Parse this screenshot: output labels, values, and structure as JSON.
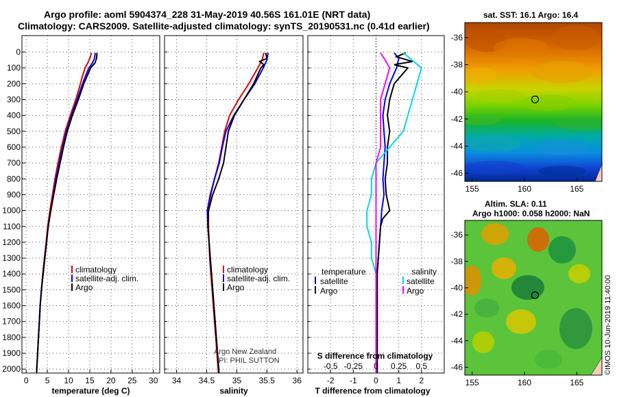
{
  "header": {
    "title_line1": "Argo profile: aoml 5904374_228 31-May-2019 40.56S 161.01E (NRT data)",
    "title_line2": "Climatology: CARS2009. Satellite-adjusted climatology: synTS_20190531.nc (0.41d earlier)"
  },
  "colors": {
    "climatology": "#e00000",
    "satellite": "#0000ee",
    "argo": "#000000",
    "sat_s": "#00d8e8",
    "argo_s": "#ff00ff"
  },
  "chart_data": [
    {
      "type": "line",
      "xlabel": "temperature (deg C)",
      "ylabel": "",
      "xlim": [
        -1,
        31.5
      ],
      "ylim": [
        2060,
        0
      ],
      "xticks": [
        "0",
        "5",
        "10",
        "15",
        "20",
        "25",
        "30"
      ],
      "yticks": [
        "0",
        "100",
        "200",
        "300",
        "400",
        "500",
        "600",
        "700",
        "800",
        "900",
        "1000",
        "1100",
        "1200",
        "1300",
        "1400",
        "1500",
        "1600",
        "1700",
        "1800",
        "1900",
        "2000"
      ],
      "legend": [
        "climatology",
        "satellite-adj. clim.",
        "Argo"
      ],
      "series": [
        {
          "name": "climatology",
          "color": "#e00000",
          "depth": [
            5,
            40,
            70,
            100,
            150,
            200,
            300,
            400,
            500,
            600,
            700,
            800,
            900,
            1000,
            1100,
            1200,
            1300,
            1400,
            1500,
            1600,
            1700,
            1800,
            1900,
            2000,
            2060
          ],
          "values": [
            15.4,
            15.0,
            14.5,
            13.9,
            13.3,
            12.8,
            11.7,
            10.4,
            9.2,
            8.3,
            7.5,
            6.8,
            6.2,
            5.6,
            5.1,
            4.7,
            4.3,
            3.9,
            3.6,
            3.3,
            3.1,
            2.9,
            2.7,
            2.5,
            2.45
          ]
        },
        {
          "name": "satellite-adj. clim.",
          "color": "#0000ee",
          "depth": [
            5,
            40,
            70,
            100,
            150,
            200,
            300,
            400,
            500,
            600,
            700,
            800,
            900,
            1000,
            1100,
            1200,
            1300,
            1400,
            1500,
            1600,
            1700,
            1800,
            1900,
            2000,
            2060
          ],
          "values": [
            16.3,
            16.1,
            15.6,
            14.8,
            14.0,
            13.3,
            12.0,
            10.7,
            9.5,
            8.6,
            7.8,
            7.0,
            6.4,
            5.8,
            5.2,
            4.8,
            4.4,
            4.0,
            3.6,
            3.3,
            3.1,
            2.9,
            2.7,
            2.5,
            2.45
          ]
        },
        {
          "name": "Argo",
          "color": "#000000",
          "depth": [
            5,
            40,
            70,
            100,
            150,
            200,
            300,
            400,
            500,
            600,
            700,
            800,
            900,
            1000,
            1100,
            1200,
            1300,
            1400,
            1500,
            1600,
            1700,
            1800,
            1900,
            2000,
            2060
          ],
          "values": [
            16.7,
            16.6,
            16.2,
            15.2,
            14.4,
            13.6,
            12.3,
            10.9,
            9.7,
            8.8,
            8.0,
            7.2,
            6.5,
            5.8,
            5.2,
            4.8,
            4.4,
            4.0,
            3.6,
            3.3,
            3.1,
            2.9,
            2.7,
            2.5,
            2.45
          ]
        }
      ]
    },
    {
      "type": "line",
      "xlabel": "salinity",
      "ylabel": "",
      "xlim": [
        33.8,
        36.1
      ],
      "ylim": [
        2060,
        0
      ],
      "xticks": [
        "34",
        "34.5",
        "35",
        "35.5",
        "36"
      ],
      "legend": [
        "climatology",
        "satellite-adj. clim.",
        "Argo"
      ],
      "series": [
        {
          "name": "climatology",
          "color": "#e00000",
          "depth": [
            5,
            50,
            100,
            200,
            300,
            400,
            500,
            600,
            700,
            800,
            900,
            1000,
            1100,
            1200,
            1300,
            1400,
            1500,
            1600,
            1700,
            1800,
            1900,
            2000,
            2060
          ],
          "values": [
            35.45,
            35.42,
            35.35,
            35.2,
            35.03,
            34.88,
            34.8,
            34.75,
            34.7,
            34.63,
            34.57,
            34.53,
            34.53,
            34.54,
            34.55,
            34.57,
            34.59,
            34.61,
            34.63,
            34.65,
            34.67,
            34.69,
            34.7
          ]
        },
        {
          "name": "satellite-adj. clim.",
          "color": "#0000ee",
          "depth": [
            5,
            50,
            100,
            200,
            300,
            400,
            500,
            600,
            700,
            800,
            900,
            1000,
            1100,
            1200,
            1300,
            1400,
            1500,
            1600,
            1700,
            1800,
            1900,
            2000,
            2060
          ],
          "values": [
            35.52,
            35.5,
            35.44,
            35.3,
            35.12,
            34.95,
            34.82,
            34.76,
            34.71,
            34.63,
            34.56,
            34.51,
            34.52,
            34.54,
            34.56,
            34.58,
            34.6,
            34.62,
            34.64,
            34.66,
            34.68,
            34.7,
            34.71
          ]
        },
        {
          "name": "Argo",
          "color": "#000000",
          "depth": [
            5,
            40,
            60,
            80,
            100,
            200,
            300,
            400,
            500,
            600,
            700,
            800,
            900,
            1000,
            1100,
            1200,
            1300,
            1400,
            1500,
            1600,
            1700,
            1800,
            1900,
            2000,
            2060
          ],
          "values": [
            35.48,
            35.5,
            35.38,
            35.45,
            35.4,
            35.28,
            35.12,
            34.96,
            34.86,
            34.82,
            34.78,
            34.7,
            34.6,
            34.53,
            34.52,
            34.54,
            34.56,
            34.58,
            34.6,
            34.62,
            34.64,
            34.66,
            34.68,
            34.7,
            34.71
          ]
        }
      ]
    },
    {
      "type": "line",
      "xlabel": "T difference from climatology",
      "ylabel": "",
      "xlim": [
        -3,
        3
      ],
      "ylim": [
        2060,
        0
      ],
      "xticks": [
        "-2",
        "-1",
        "0",
        "1",
        "2"
      ],
      "secondary_axis": {
        "label": "S difference from climatology",
        "ticks": [
          "-0.5",
          "-0.25",
          "0",
          "0.25",
          "0.5"
        ]
      },
      "legend_temperature": {
        "title": "temperature",
        "items": [
          "satellite",
          "Argo"
        ]
      },
      "legend_salinity": {
        "title": "salinity",
        "items": [
          "satellite",
          "Argo"
        ]
      },
      "series": [
        {
          "name": "temperature satellite",
          "color": "#0000ee",
          "depth": [
            5,
            40,
            100,
            200,
            300,
            400,
            500,
            600,
            700,
            800,
            900,
            1000,
            1100,
            1200,
            1300,
            1400,
            1500,
            1600,
            1800,
            2000,
            2060
          ],
          "values": [
            0.8,
            1.0,
            0.9,
            0.6,
            0.4,
            0.3,
            0.35,
            0.4,
            0.35,
            0.3,
            0.35,
            0.25,
            0.2,
            0.15,
            0.1,
            0.05,
            0.05,
            0.05,
            0.05,
            0.05,
            0.05
          ]
        },
        {
          "name": "temperature Argo",
          "color": "#000000",
          "depth": [
            5,
            30,
            60,
            80,
            100,
            200,
            300,
            400,
            500,
            600,
            700,
            800,
            900,
            1000,
            1050,
            1100,
            1200,
            1300,
            1400,
            1500,
            1600,
            1800,
            2000,
            2060
          ],
          "values": [
            1.3,
            0.9,
            1.6,
            0.8,
            1.4,
            0.8,
            0.6,
            0.5,
            0.6,
            0.5,
            0.5,
            0.4,
            0.45,
            0.6,
            0.3,
            0.2,
            0.15,
            0.1,
            0.05,
            0.05,
            0.05,
            0.05,
            0.05,
            0.05
          ]
        },
        {
          "name": "salinity satellite",
          "color": "#00d8e8",
          "depth": [
            5,
            100,
            200,
            300,
            400,
            500,
            600,
            700,
            800,
            900,
            1000,
            1100,
            1200,
            1300,
            1400,
            1500,
            1600,
            1800,
            2000,
            2060
          ],
          "values": [
            0.3,
            0.5,
            0.45,
            0.4,
            0.35,
            0.3,
            0.15,
            0.0,
            -0.05,
            -0.05,
            -0.1,
            -0.1,
            -0.05,
            -0.05,
            0.0,
            0.0,
            0.0,
            0.0,
            0.0,
            0.0
          ]
        },
        {
          "name": "salinity Argo",
          "color": "#ff00ff",
          "depth": [
            5,
            50,
            100,
            200,
            300,
            400,
            500,
            600,
            700,
            800,
            900,
            1000,
            1100,
            1200,
            1300,
            1400,
            1500,
            1600,
            1800,
            2000,
            2060
          ],
          "values": [
            0.05,
            0.1,
            0.15,
            0.1,
            0.05,
            0.05,
            0.05,
            0.05,
            0.0,
            0.0,
            0.0,
            0.0,
            0.0,
            0.0,
            0.0,
            0.0,
            0.0,
            0.0,
            0.0,
            0.0,
            0.0
          ]
        }
      ]
    },
    {
      "type": "heatmap",
      "title": "sat. SST: 16.1 Argo: 16.4",
      "xticks": [
        "155",
        "160",
        "165"
      ],
      "yticks": [
        "-36",
        "-38",
        "-40",
        "-42",
        "-44",
        "-46"
      ],
      "xlim": [
        154.3,
        167.4
      ],
      "ylim": [
        -46.6,
        -34.9
      ],
      "marker": {
        "lon": 161.01,
        "lat": -40.56
      }
    },
    {
      "type": "heatmap",
      "title_line1": "Altim. SLA: 0.11",
      "title_line2": "Argo h1000: 0.058 h2000: NaN",
      "xticks": [
        "155",
        "160",
        "165"
      ],
      "yticks": [
        "-36",
        "-38",
        "-40",
        "-42",
        "-44",
        "-46"
      ],
      "xlim": [
        154.3,
        167.4
      ],
      "ylim": [
        -46.6,
        -34.9
      ],
      "marker": {
        "lon": 161.01,
        "lat": -40.56
      }
    }
  ],
  "credits": {
    "line1": "Argo New Zealand",
    "line2": "PI: PHIL SUTTON"
  },
  "stamp": "©IMOS 10-Jun-2019 11:40:00"
}
